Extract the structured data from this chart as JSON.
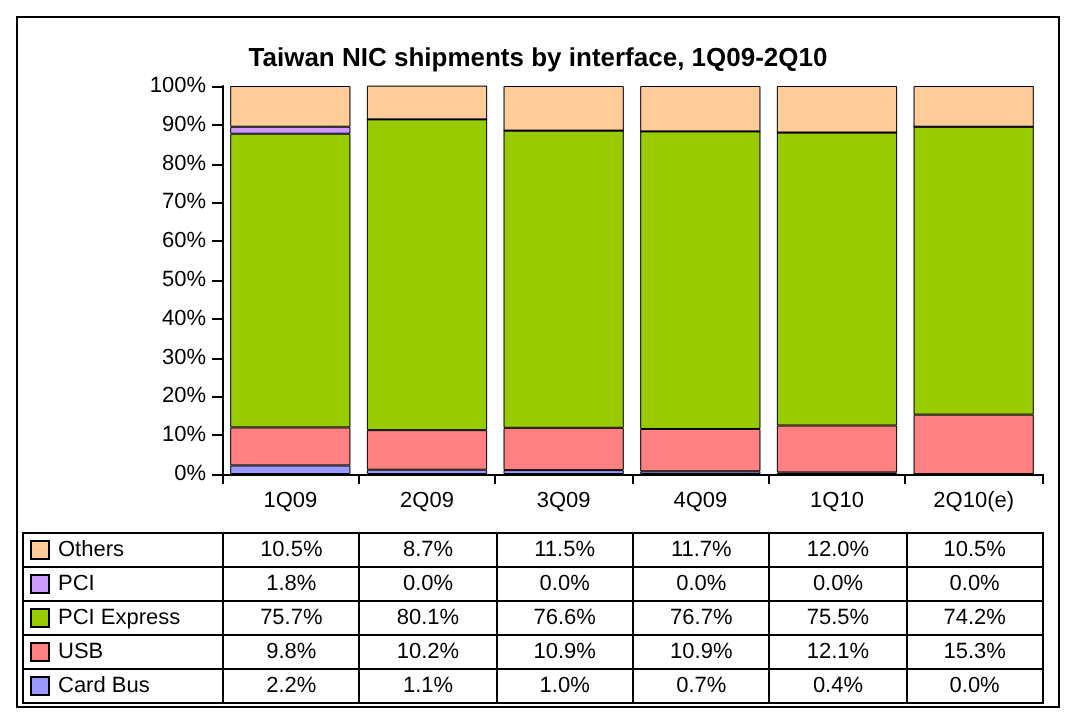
{
  "chart_data": {
    "type": "bar",
    "title": "Taiwan NIC shipments by interface, 1Q09-2Q10",
    "categories": [
      "1Q09",
      "2Q09",
      "3Q09",
      "4Q09",
      "1Q10",
      "2Q10(e)"
    ],
    "stacked": true,
    "legend": "bottom",
    "ylim": [
      0,
      100
    ],
    "yticks": [
      {
        "value": 0,
        "label": "0%"
      },
      {
        "value": 10,
        "label": "10%"
      },
      {
        "value": 20,
        "label": "20%"
      },
      {
        "value": 30,
        "label": "30%"
      },
      {
        "value": 40,
        "label": "40%"
      },
      {
        "value": 50,
        "label": "50%"
      },
      {
        "value": 60,
        "label": "60%"
      },
      {
        "value": 70,
        "label": "70%"
      },
      {
        "value": 80,
        "label": "80%"
      },
      {
        "value": 90,
        "label": "90%"
      },
      {
        "value": 100,
        "label": "100%"
      }
    ],
    "series": [
      {
        "name": "Card Bus",
        "color": "#9999ff",
        "values": [
          2.2,
          1.1,
          1.0,
          0.7,
          0.4,
          0.0
        ],
        "value_labels": [
          "2.2%",
          "1.1%",
          "1.0%",
          "0.7%",
          "0.4%",
          "0.0%"
        ]
      },
      {
        "name": "USB",
        "color": "#ff8080",
        "values": [
          9.8,
          10.2,
          10.9,
          10.9,
          12.1,
          15.3
        ],
        "value_labels": [
          "9.8%",
          "10.2%",
          "10.9%",
          "10.9%",
          "12.1%",
          "15.3%"
        ]
      },
      {
        "name": "PCI Express",
        "color": "#99cc00",
        "values": [
          75.7,
          80.1,
          76.6,
          76.7,
          75.5,
          74.2
        ],
        "value_labels": [
          "75.7%",
          "80.1%",
          "76.6%",
          "76.7%",
          "75.5%",
          "74.2%"
        ]
      },
      {
        "name": "PCI",
        "color": "#cc99ff",
        "values": [
          1.8,
          0.0,
          0.0,
          0.0,
          0.0,
          0.0
        ],
        "value_labels": [
          "1.8%",
          "0.0%",
          "0.0%",
          "0.0%",
          "0.0%",
          "0.0%"
        ]
      },
      {
        "name": "Others",
        "color": "#ffcc99",
        "values": [
          10.5,
          8.7,
          11.5,
          11.7,
          12.0,
          10.5
        ],
        "value_labels": [
          "10.5%",
          "8.7%",
          "11.5%",
          "11.7%",
          "12.0%",
          "10.5%"
        ]
      }
    ]
  }
}
